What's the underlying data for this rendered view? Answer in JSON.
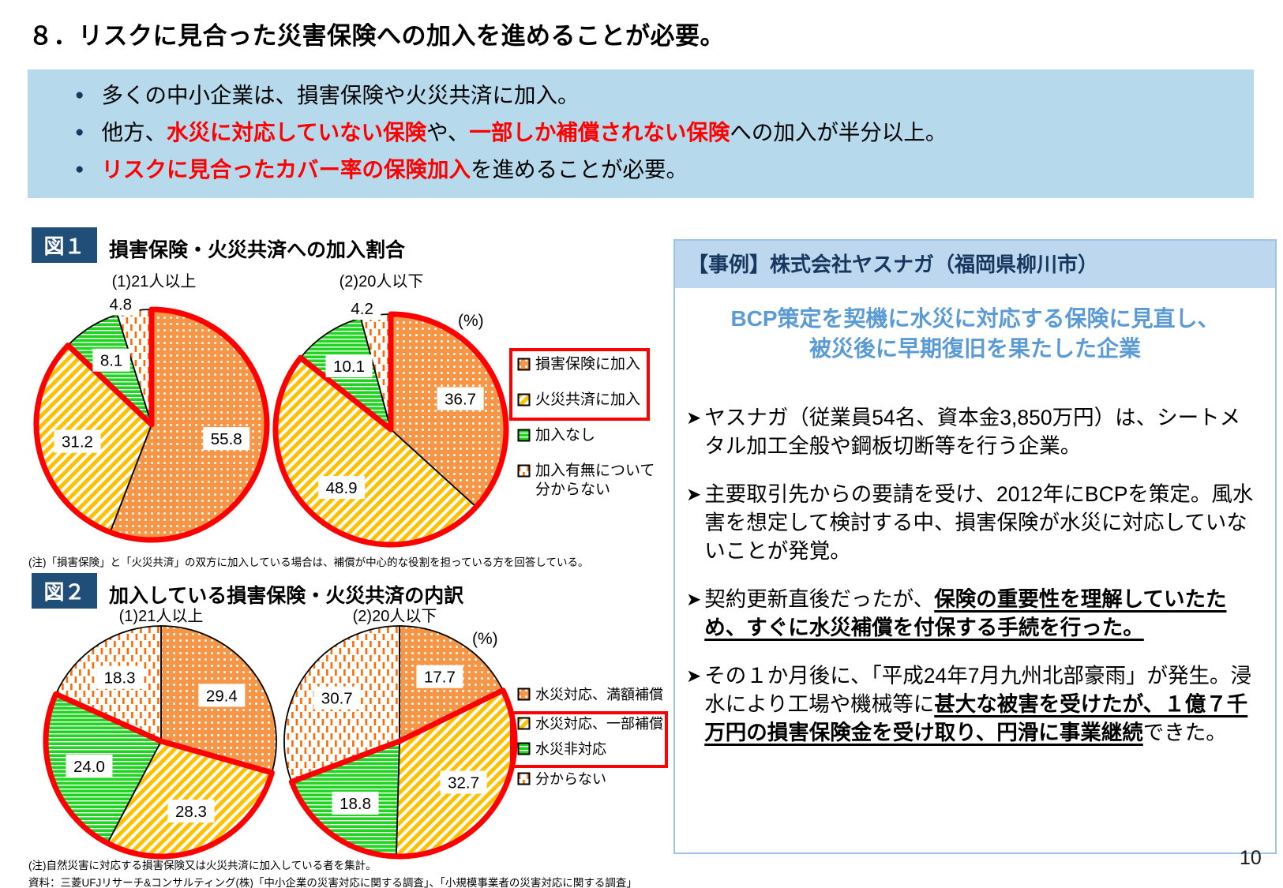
{
  "page": {
    "number": "10"
  },
  "title": "８．リスクに見合った災害保険への加入を進めることが必要。",
  "summary": {
    "bullets": [
      {
        "segments": [
          {
            "text": "多くの中小企業は、損害保険や火災共済に加入。",
            "style": "normal"
          }
        ]
      },
      {
        "segments": [
          {
            "text": "他方、",
            "style": "normal"
          },
          {
            "text": "水災に対応していない保険",
            "style": "red"
          },
          {
            "text": "や、",
            "style": "normal"
          },
          {
            "text": "一部しか補償されない保険",
            "style": "red"
          },
          {
            "text": "への加入が半分以上。",
            "style": "normal"
          }
        ]
      },
      {
        "segments": [
          {
            "text": "リスクに見合ったカバー率の保険加入",
            "style": "red"
          },
          {
            "text": "を進めることが必要。",
            "style": "normal"
          }
        ]
      }
    ]
  },
  "figure1": {
    "badge": "図１",
    "title": "損害保険・火災共済への加入割合",
    "subtitle_left": "(1)21人以上",
    "subtitle_right": "(2)20人以下",
    "unit_label": "(%)",
    "note": "(注)「損害保険」と「火災共済」の双方に加入している場合は、補償が中心的な役割を担っている方を回答している。",
    "legend": [
      {
        "label": "損害保険に加入",
        "pattern": "orange-dots"
      },
      {
        "label": "火災共済に加入",
        "pattern": "yellow-diag"
      },
      {
        "label": "加入なし",
        "pattern": "green-horiz"
      },
      {
        "label": "加入有無について\n分からない",
        "pattern": "orange-dash"
      }
    ]
  },
  "figure2": {
    "badge": "図２",
    "title": "加入している損害保険・火災共済の内訳",
    "subtitle_left": "(1)21人以上",
    "subtitle_right": "(2)20人以下",
    "unit_label": "(%)",
    "note": "(注)自然災害に対応する損害保険又は火災共済に加入している者を集計。",
    "legend": [
      {
        "label": "水災対応、満額補償",
        "pattern": "orange-dots"
      },
      {
        "label": "水災対応、一部補償",
        "pattern": "yellow-diag"
      },
      {
        "label": "水災非対応",
        "pattern": "green-horiz"
      },
      {
        "label": "分からない",
        "pattern": "orange-dash"
      }
    ]
  },
  "chart_data": [
    {
      "id": "fig1-pie1",
      "type": "pie",
      "title": "図１ 損害保険・火災共済への加入割合 (1)21人以上",
      "unit": "%",
      "categories": [
        "損害保険に加入",
        "火災共済に加入",
        "加入なし",
        "加入有無について分からない"
      ],
      "values": [
        55.8,
        31.2,
        8.1,
        4.8
      ],
      "patterns": [
        "orange-dots",
        "yellow-diag",
        "green-horiz",
        "orange-dash"
      ],
      "red_outline_slices": [
        0,
        1
      ],
      "legend_position": "right",
      "start_angle_deg": 0,
      "direction": "clockwise"
    },
    {
      "id": "fig1-pie2",
      "type": "pie",
      "title": "図１ 損害保険・火災共済への加入割合 (2)20人以下",
      "unit": "%",
      "categories": [
        "損害保険に加入",
        "火災共済に加入",
        "加入なし",
        "加入有無について分からない"
      ],
      "values": [
        36.7,
        48.9,
        10.1,
        4.2
      ],
      "patterns": [
        "orange-dots",
        "yellow-diag",
        "green-horiz",
        "orange-dash"
      ],
      "red_outline_slices": [
        0,
        1
      ],
      "legend_position": "right",
      "start_angle_deg": 0,
      "direction": "clockwise"
    },
    {
      "id": "fig2-pie1",
      "type": "pie",
      "title": "図２ 加入している損害保険・火災共済の内訳 (1)21人以上",
      "unit": "%",
      "categories": [
        "水災対応、満額補償",
        "水災対応、一部補償",
        "水災非対応",
        "分からない"
      ],
      "values": [
        29.4,
        28.3,
        24.0,
        18.3
      ],
      "patterns": [
        "orange-dots",
        "yellow-diag",
        "green-horiz",
        "orange-dash"
      ],
      "red_outline_slices": [
        1,
        2
      ],
      "legend_position": "right",
      "start_angle_deg": 0,
      "direction": "clockwise"
    },
    {
      "id": "fig2-pie2",
      "type": "pie",
      "title": "図２ 加入している損害保険・火災共済の内訳 (2)20人以下",
      "unit": "%",
      "categories": [
        "水災対応、満額補償",
        "水災対応、一部補償",
        "水災非対応",
        "分からない"
      ],
      "values": [
        17.7,
        32.7,
        18.8,
        30.7
      ],
      "patterns": [
        "orange-dots",
        "yellow-diag",
        "green-horiz",
        "orange-dash"
      ],
      "red_outline_slices": [
        1,
        2
      ],
      "legend_position": "right",
      "start_angle_deg": 0,
      "direction": "clockwise"
    }
  ],
  "case_study": {
    "header": "【事例】株式会社ヤスナガ（福岡県柳川市）",
    "subtitle": "BCP策定を契機に水災に対応する保険に見直し、\n被災後に早期復旧を果たした企業",
    "bullets": [
      {
        "segments": [
          {
            "text": "ヤスナガ（従業員54名、資本金3,850万円）は、シートメタル加工全般や鋼板切断等を行う企業。",
            "style": "normal"
          }
        ]
      },
      {
        "segments": [
          {
            "text": "主要取引先からの要請を受け、2012年にBCPを策定。風水害を想定して検討する中、損害保険が水災に対応していないことが発覚。",
            "style": "normal"
          }
        ]
      },
      {
        "segments": [
          {
            "text": "契約更新直後だったが、",
            "style": "normal"
          },
          {
            "text": "保険の重要性を理解していたため、すぐに水災補償を付保する手続を行った。",
            "style": "bu"
          }
        ]
      },
      {
        "segments": [
          {
            "text": "その１か月後に、「平成24年7月九州北部豪雨」が発生。浸水により工場や機械等に",
            "style": "normal"
          },
          {
            "text": "甚大な被害を受けたが、１億７千万円の損害保険金を受け取り、円滑に事業継続",
            "style": "bu"
          },
          {
            "text": "できた。",
            "style": "normal"
          }
        ]
      }
    ]
  },
  "source": "資料：三菱UFJリサーチ&コンサルティング(株)「中小企業の災害対応に関する調査」、「小規模事業者の災害対応に関する調査」",
  "colors": {
    "accent_red": "#FF0000",
    "navy_badge": "#1F4E79",
    "navy_text": "#17375E",
    "summary_bg": "#B7D9EC",
    "case_header_bg": "#BDD7EE",
    "case_border": "#9DC3E6",
    "case_subtitle_blue": "#5B9BD5",
    "pie_orange": "#F79646",
    "pie_yellow": "#FFC000",
    "pie_green": "#21D421",
    "pie_dash_orange": "#FF6900"
  }
}
